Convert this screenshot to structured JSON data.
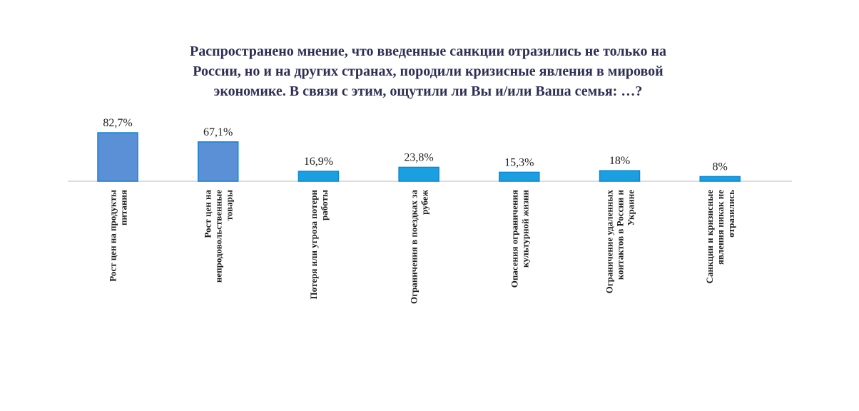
{
  "chart_data": {
    "type": "bar",
    "title": "Распространено мнение, что введенные санкции отразились не только на\nРоссии, но и на других странах, породили кризисные явления в мировой\nэкономике. В связи с этим, ощутили ли Вы и/или Ваша семья: …?",
    "xlabel": "",
    "ylabel": "",
    "categories": [
      [
        "Рост цен на продукты",
        "питания"
      ],
      [
        "Рост цен на",
        "непродовольственные",
        "товары"
      ],
      [
        "Потеря или угроза потери",
        "работы"
      ],
      [
        "Ограничения в поездках за",
        "рубеж"
      ],
      [
        "Опасения ограничения",
        "культурной жизни"
      ],
      [
        "Ограничение удаленных",
        "контактов в России и",
        "Украине"
      ],
      [
        "Санкции и кризисные",
        "явления никак не",
        "отразились"
      ]
    ],
    "values": [
      82.7,
      67.1,
      16.9,
      23.8,
      15.3,
      18,
      8
    ],
    "value_labels": [
      "82,7%",
      "67,1%",
      "16,9%",
      "23,8%",
      "15,3%",
      "18%",
      "8%"
    ],
    "ylim": [
      0,
      100
    ],
    "grid": false,
    "legend": "none",
    "colors": {
      "bars_high": "#5b8fd6",
      "bars_low": "#1aa0e0",
      "bar_edge": "#0e86d4",
      "baseline": "#d0d0d0",
      "title": "#2f2f55",
      "text": "#1e1e1e"
    }
  }
}
